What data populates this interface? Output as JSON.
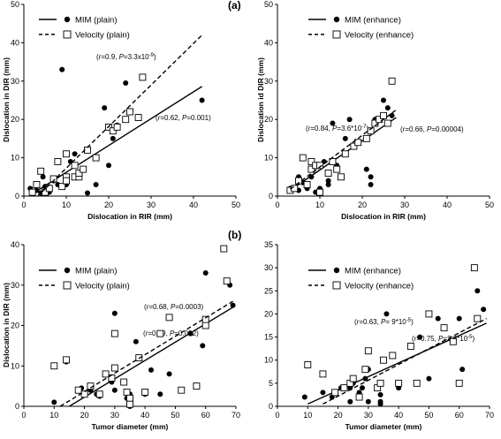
{
  "panel_labels": {
    "a": "(a)",
    "b": "(b)"
  },
  "chart_data": [
    {
      "type": "scatter",
      "xlabel": "Dislocation  in RIR (mm)",
      "ylabel": "Dislocation  in DIR (mm)",
      "xlim": [
        0,
        50
      ],
      "ylim": [
        0,
        50
      ],
      "xticks": [
        0,
        10,
        20,
        30,
        40,
        50
      ],
      "yticks": [
        0,
        10,
        20,
        30,
        40,
        50
      ],
      "legend_position": "top-left",
      "series": [
        {
          "name": "MIM (plain)",
          "marker": "filled-circle",
          "line": "solid",
          "fit": [
            [
              2,
              0.6
            ],
            [
              42,
              28.6
            ]
          ],
          "annotation": "(r=0.62, P=0.001)",
          "points": [
            [
              1.5,
              2
            ],
            [
              3,
              1.5
            ],
            [
              4,
              0.8
            ],
            [
              4.5,
              5
            ],
            [
              5,
              2.5
            ],
            [
              6,
              1
            ],
            [
              7,
              4
            ],
            [
              8,
              3
            ],
            [
              9,
              33
            ],
            [
              10,
              3
            ],
            [
              11,
              9
            ],
            [
              12,
              11
            ],
            [
              13,
              5
            ],
            [
              15,
              0.8
            ],
            [
              17,
              3
            ],
            [
              19,
              23
            ],
            [
              20,
              18
            ],
            [
              20,
              8
            ],
            [
              21,
              15
            ],
            [
              22,
              18.5
            ],
            [
              24,
              29.5
            ],
            [
              42,
              25
            ]
          ]
        },
        {
          "name": "Velocity (plain)",
          "marker": "open-square",
          "line": "dashed",
          "fit": [
            [
              3,
              -0.3
            ],
            [
              42,
              42
            ]
          ],
          "annotation": "(r=0.9, P=3.3x10-9)",
          "points": [
            [
              2,
              1
            ],
            [
              3,
              3
            ],
            [
              4,
              6.5
            ],
            [
              5,
              1
            ],
            [
              6,
              2
            ],
            [
              7,
              4.5
            ],
            [
              8,
              9
            ],
            [
              9,
              2.5
            ],
            [
              10,
              5
            ],
            [
              10,
              4
            ],
            [
              10,
              11
            ],
            [
              12,
              8
            ],
            [
              12,
              5
            ],
            [
              13,
              5
            ],
            [
              13,
              6
            ],
            [
              14,
              7
            ],
            [
              15,
              12
            ],
            [
              17,
              10
            ],
            [
              20,
              18
            ],
            [
              21,
              17
            ],
            [
              22,
              18
            ],
            [
              24,
              20
            ],
            [
              25,
              22
            ],
            [
              27,
              20.5
            ],
            [
              28,
              31
            ]
          ]
        }
      ]
    },
    {
      "type": "scatter",
      "xlabel": "Dislocation  in RIR (mm)",
      "ylabel": "Dislocation  id DIR (mm)",
      "xlim": [
        0,
        50
      ],
      "ylim": [
        0,
        50
      ],
      "xticks": [
        0,
        10,
        20,
        30,
        40,
        50
      ],
      "yticks": [
        0,
        10,
        20,
        30,
        40,
        50
      ],
      "legend_position": "top-left",
      "series": [
        {
          "name": "MIM (enhance)",
          "marker": "filled-circle",
          "line": "solid",
          "fit": [
            [
              3,
              1.5
            ],
            [
              28,
              20.5
            ]
          ],
          "annotation": "(r=0.66, P=0.00004)",
          "points": [
            [
              3,
              2
            ],
            [
              4,
              2
            ],
            [
              5,
              5
            ],
            [
              5,
              1.5
            ],
            [
              6,
              3.5
            ],
            [
              7,
              2
            ],
            [
              8,
              5
            ],
            [
              9,
              1
            ],
            [
              10,
              2
            ],
            [
              11,
              9
            ],
            [
              12,
              3
            ],
            [
              12,
              4
            ],
            [
              13,
              19
            ],
            [
              14,
              8
            ],
            [
              15,
              5
            ],
            [
              16,
              15
            ],
            [
              17,
              20
            ],
            [
              21,
              7
            ],
            [
              22,
              3
            ],
            [
              22,
              5
            ],
            [
              23,
              20
            ],
            [
              25,
              25
            ],
            [
              26,
              23
            ],
            [
              27,
              21
            ]
          ]
        },
        {
          "name": "Velocity (enhance)",
          "marker": "open-square",
          "line": "dashed",
          "fit": [
            [
              3,
              1.8
            ],
            [
              28,
              22.5
            ]
          ],
          "annotation": "(r=0.84, P=3.6*10-7)",
          "points": [
            [
              3,
              1.5
            ],
            [
              4,
              2
            ],
            [
              5,
              4
            ],
            [
              6,
              10
            ],
            [
              7,
              3
            ],
            [
              8,
              9
            ],
            [
              8,
              7
            ],
            [
              9,
              8
            ],
            [
              10,
              8
            ],
            [
              10,
              1
            ],
            [
              12,
              6
            ],
            [
              13,
              9
            ],
            [
              14,
              7
            ],
            [
              15,
              5
            ],
            [
              16,
              11
            ],
            [
              18,
              13
            ],
            [
              19,
              14
            ],
            [
              21,
              15
            ],
            [
              22,
              17
            ],
            [
              23,
              19
            ],
            [
              24,
              20
            ],
            [
              25,
              21
            ],
            [
              26,
              19
            ],
            [
              27,
              30
            ]
          ]
        }
      ]
    },
    {
      "type": "scatter",
      "xlabel": "Tumor diameter (mm)",
      "ylabel": "Dislocation  in DIR (mm)",
      "xlim": [
        0,
        70
      ],
      "ylim": [
        0,
        40
      ],
      "xticks": [
        0,
        10,
        20,
        30,
        40,
        50,
        60,
        70
      ],
      "yticks": [
        0,
        10,
        20,
        30,
        40
      ],
      "legend_position": "top-left",
      "series": [
        {
          "name": "MIM (plain)",
          "marker": "filled-circle",
          "line": "solid",
          "fit": [
            [
              15,
              0
            ],
            [
              69,
              24.5
            ]
          ],
          "annotation": "(r=0.69, P=0.002)",
          "points": [
            [
              10,
              1
            ],
            [
              14,
              11
            ],
            [
              19,
              4.5
            ],
            [
              22,
              4
            ],
            [
              24,
              3
            ],
            [
              25,
              2.5
            ],
            [
              29,
              6
            ],
            [
              30,
              23
            ],
            [
              30,
              4
            ],
            [
              34,
              2
            ],
            [
              35,
              3
            ],
            [
              35,
              0
            ],
            [
              37,
              16
            ],
            [
              40,
              3
            ],
            [
              42,
              9
            ],
            [
              45,
              3
            ],
            [
              48,
              8
            ],
            [
              55,
              18
            ],
            [
              59,
              15
            ],
            [
              60,
              33
            ],
            [
              68,
              30
            ],
            [
              69,
              25
            ]
          ]
        },
        {
          "name": "Velocity (plain)",
          "marker": "open-square",
          "line": "dashed",
          "fit": [
            [
              12,
              0
            ],
            [
              69,
              26
            ]
          ],
          "annotation": "(r=0.68, P=0.0003)",
          "points": [
            [
              10,
              10
            ],
            [
              14,
              11.5
            ],
            [
              18,
              4
            ],
            [
              20,
              3
            ],
            [
              22,
              5
            ],
            [
              25,
              3
            ],
            [
              27,
              8
            ],
            [
              29,
              7
            ],
            [
              30,
              18
            ],
            [
              30,
              9.5
            ],
            [
              33,
              6
            ],
            [
              34,
              3.5
            ],
            [
              35,
              1
            ],
            [
              35,
              2
            ],
            [
              35,
              0.5
            ],
            [
              38,
              12
            ],
            [
              40,
              3.5
            ],
            [
              45,
              18
            ],
            [
              48,
              22
            ],
            [
              52,
              4
            ],
            [
              57,
              5
            ],
            [
              60,
              20
            ],
            [
              60,
              21.5
            ],
            [
              66,
              39
            ],
            [
              67,
              31
            ]
          ]
        }
      ]
    },
    {
      "type": "scatter",
      "xlabel": "Tumor diameter (mm)",
      "ylabel": "",
      "xlim": [
        0,
        70
      ],
      "ylim": [
        0,
        35
      ],
      "xticks": [
        0,
        10,
        20,
        30,
        40,
        50,
        60,
        70
      ],
      "yticks": [
        0,
        5,
        10,
        15,
        20,
        25,
        30,
        35
      ],
      "legend_position": "top-left",
      "series": [
        {
          "name": "MIM (enhance)",
          "marker": "filled-circle",
          "line": "solid",
          "fit": [
            [
              10,
              0.5
            ],
            [
              69,
              18
            ]
          ],
          "annotation": "(r=0.75, P=2.8*10-5)",
          "points": [
            [
              9,
              2
            ],
            [
              15,
              3
            ],
            [
              18,
              2
            ],
            [
              21,
              4
            ],
            [
              24,
              1
            ],
            [
              24,
              4
            ],
            [
              25,
              5
            ],
            [
              27,
              3
            ],
            [
              28,
              4
            ],
            [
              29,
              6
            ],
            [
              30,
              8
            ],
            [
              30,
              1
            ],
            [
              34,
              0.5
            ],
            [
              34,
              1
            ],
            [
              34,
              2.5
            ],
            [
              36,
              20
            ],
            [
              40,
              4
            ],
            [
              47,
              15
            ],
            [
              50,
              6
            ],
            [
              53,
              19
            ],
            [
              60,
              19
            ],
            [
              61,
              8
            ],
            [
              66,
              25
            ],
            [
              68,
              21
            ]
          ]
        },
        {
          "name": "Velocity (enhance)",
          "marker": "open-square",
          "line": "dashed",
          "fit": [
            [
              15,
              0.5
            ],
            [
              69,
              19
            ]
          ],
          "annotation": "(r=0.63, P= 9*10-5)",
          "points": [
            [
              10,
              9
            ],
            [
              15,
              7
            ],
            [
              19,
              3
            ],
            [
              22,
              4
            ],
            [
              24,
              5
            ],
            [
              25,
              6
            ],
            [
              27,
              2
            ],
            [
              29,
              8
            ],
            [
              30,
              12
            ],
            [
              33,
              4
            ],
            [
              34,
              5
            ],
            [
              35,
              10
            ],
            [
              38,
              11
            ],
            [
              40,
              5
            ],
            [
              44,
              13
            ],
            [
              46,
              5
            ],
            [
              50,
              20
            ],
            [
              55,
              17
            ],
            [
              58,
              14
            ],
            [
              60,
              5
            ],
            [
              65,
              30
            ],
            [
              66,
              19
            ]
          ]
        }
      ]
    }
  ]
}
